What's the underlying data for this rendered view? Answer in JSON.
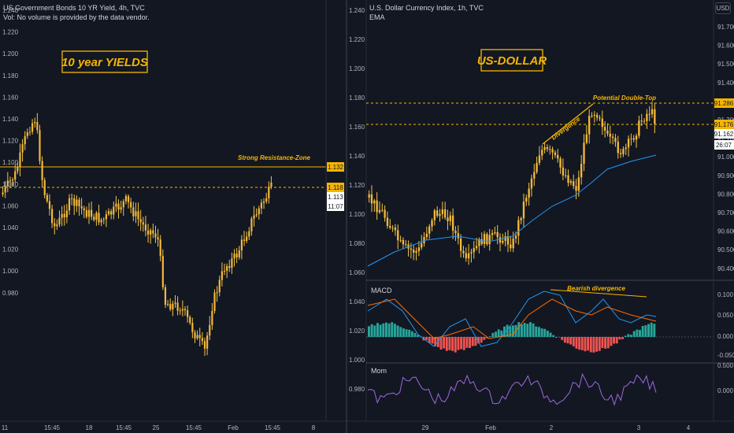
{
  "left_chart": {
    "title": "US Government Bonds 10 YR Yield, 4h, TVC",
    "subtitle": "Vol: No volume is provided by the data vendor.",
    "annotation_box": "10 year YIELDS",
    "resistance_label": "Strong Resistance-Zone",
    "price_labels": {
      "resistance": "1.132",
      "dashed": "1.118",
      "last": "1.113",
      "countdown": "11:07"
    },
    "y_ticks": [
      "1.240",
      "1.220",
      "1.200",
      "1.180",
      "1.160",
      "1.140",
      "1.120",
      "1.100",
      "1.080",
      "1.060",
      "1.040",
      "1.020",
      "1.000",
      "0.980"
    ],
    "x_ticks": [
      "11",
      "15:45",
      "18",
      "15:45",
      "25",
      "15:45",
      "Feb",
      "15:45",
      "8"
    ]
  },
  "right_chart": {
    "title": "U.S. Dollar Currency Index, 1h, TVC",
    "subtitle": "EMA",
    "currency_button": "USD",
    "annotation_box": "US-DOLLAR",
    "divergence_label": "Divergence",
    "double_top_label": "Potential Double-Top",
    "price_labels": {
      "top": "91.286",
      "dashed": "91.176",
      "last": "91.162",
      "countdown": "26:07"
    },
    "y_ticks": [
      "91.700",
      "91.600",
      "91.500",
      "91.400",
      "91.300",
      "91.200",
      "91.100",
      "91.000",
      "90.900",
      "90.800",
      "90.700",
      "90.600",
      "90.500",
      "90.400"
    ],
    "macd_label": "MACD",
    "macd_annotation": "Bearish divergence",
    "macd_ticks": [
      "0.100",
      "0.050",
      "0.000",
      "-0.050"
    ],
    "mom_label": "Mom",
    "mom_ticks": [
      "0.500",
      "0.000"
    ],
    "x_ticks": [
      "29",
      "Feb",
      "2",
      "3",
      "4"
    ]
  },
  "colors": {
    "background": "#131722",
    "candle": "#f5b93a",
    "wick": "#f5c542",
    "ema": "#2196f3",
    "macd_line": "#2196f3",
    "signal_line": "#ff6d00",
    "hist_pos": "#26a69a",
    "hist_neg": "#ef5350",
    "mom_line": "#9c6ade",
    "annotation": "#f5b500"
  }
}
